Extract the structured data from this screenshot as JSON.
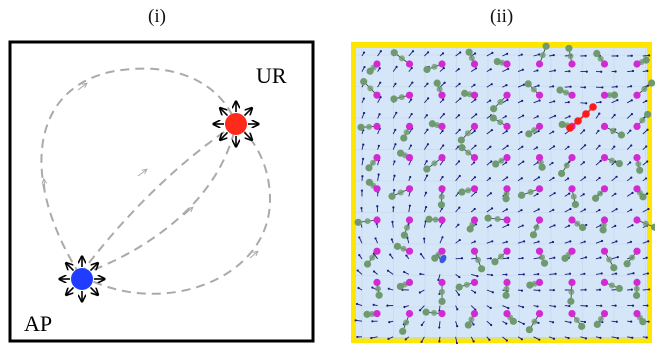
{
  "panels": {
    "left_label": "(i)",
    "right_label": "(ii)"
  },
  "diagram_i": {
    "source_label": "AP",
    "target_label": "UR",
    "source_color": "#1f3cff",
    "target_color": "#ff2a1a"
  },
  "diagram_ii": {
    "background_color": "#d4e6f7",
    "border_color": "#ffe600",
    "arrow_color": "#1a1a80",
    "magenta_color": "#d22ad2",
    "green_color": "#6f9a6f",
    "red_chain_color": "#ff1a1a",
    "blue_blob_color": "#3a56e0"
  }
}
